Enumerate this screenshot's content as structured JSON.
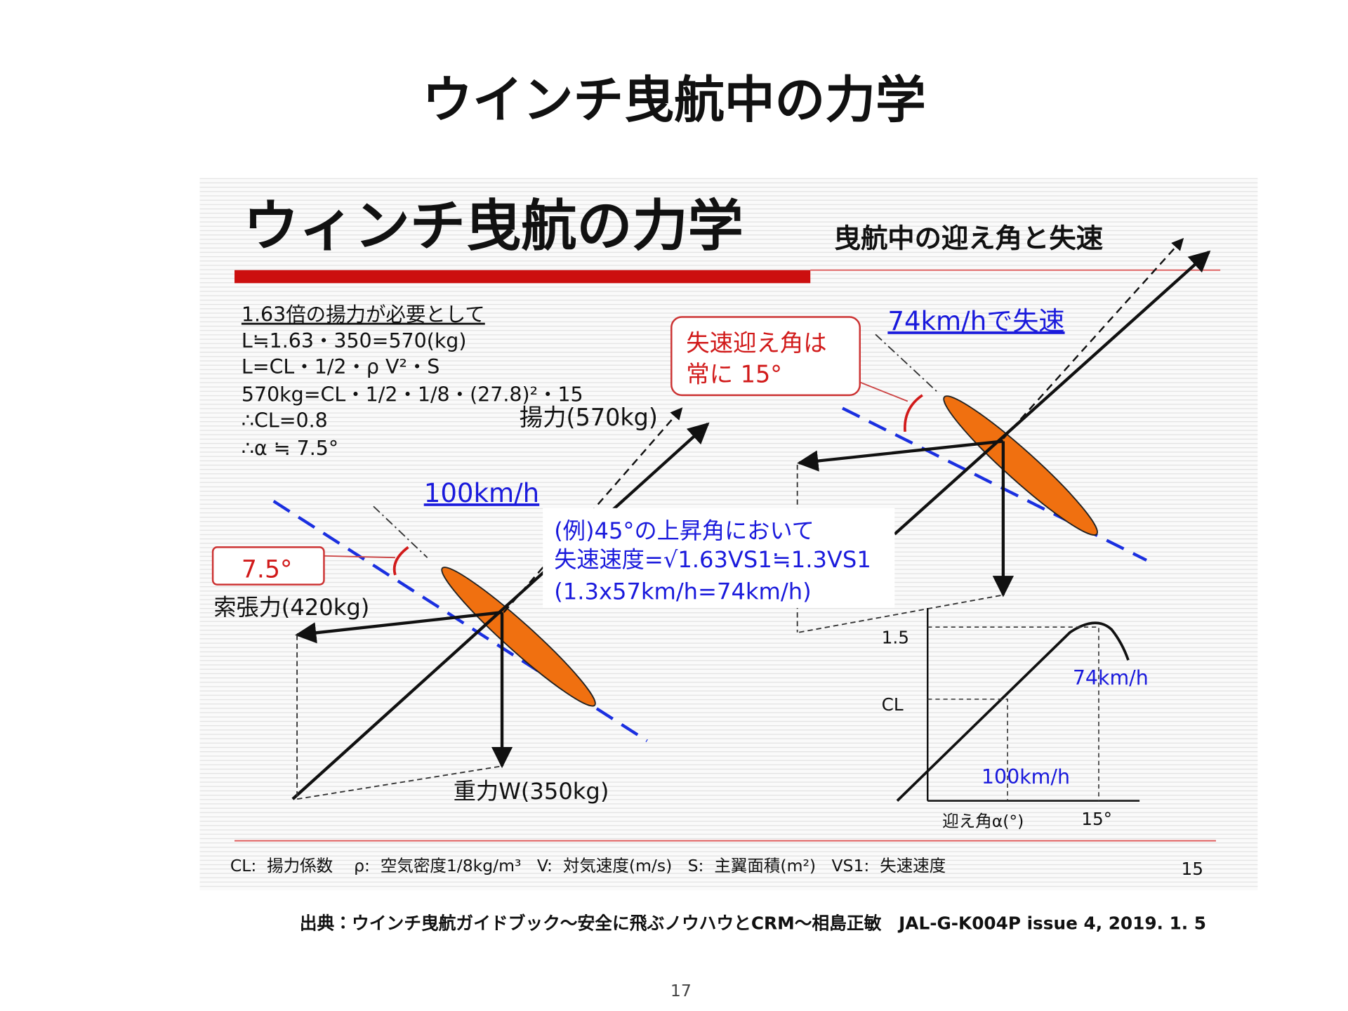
{
  "title": "ウインチ曳航中の力学",
  "slide": {
    "title": "ウィンチ曳航の力学",
    "subtitle": "曳航中の迎え角と失速",
    "calculation": [
      "1.63倍の揚力が必要として",
      "L≒1.63・350=570(kg)",
      "L=CL・1/2・ρ V²・S",
      "570kg=CL・1/2・1/8・(27.8)²・15",
      "∴CL=0.8",
      "∴α ≒ 7.5°"
    ],
    "left": {
      "lift": "揚力(570kg)",
      "speed": "100km/h",
      "angle": "7.5°",
      "tension": "索張力(420kg)",
      "weight": "重力W(350kg)"
    },
    "example": [
      "(例)45°の上昇角において",
      "失速速度=√1.63VS1≒1.3VS1",
      "(1.3x57km/h=74km/h)"
    ],
    "right": {
      "stall": "74km/hで失速",
      "callout": [
        "失速迎え角は",
        "常に  15°"
      ]
    },
    "graph": {
      "y_max": "1.5",
      "y_label": "CL",
      "stall_speed": "74km/h",
      "cruise_speed": "100km/h",
      "x_label": "迎え角α(°)",
      "x_mark": "15°"
    },
    "legend": "CL:  揚力係数    ρ:  空気密度1/8kg/m³   V:  対気速度(m/s)   S:  主翼面積(m²)   VS1:  失速速度",
    "page": "15"
  },
  "source": "出典：ウインチ曳航ガイドブック〜安全に飛ぶノウハウとCRM〜相島正敏　JAL-G-K004P issue 4, 2019. 1. 5",
  "page_number": "17"
}
